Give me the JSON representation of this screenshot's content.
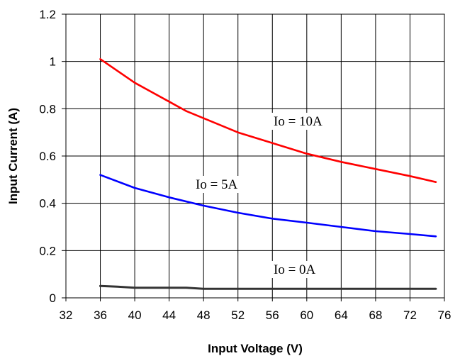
{
  "chart_data": {
    "type": "line",
    "title": "",
    "xlabel": "Input Voltage (V)",
    "ylabel": "Input Current (A)",
    "xlim": [
      32,
      76
    ],
    "ylim": [
      0,
      1.2
    ],
    "x_ticks": [
      "32",
      "36",
      "40",
      "44",
      "48",
      "52",
      "56",
      "60",
      "64",
      "68",
      "72",
      "76"
    ],
    "y_ticks": [
      "0",
      "0.2",
      "0.4",
      "0.6",
      "0.8",
      "1",
      "1.2"
    ],
    "grid": true,
    "legend": "none",
    "series": [
      {
        "name": "Io = 10A",
        "color": "#ff0000",
        "x": [
          36,
          40,
          44,
          46,
          48,
          52,
          56,
          60,
          64,
          68,
          72,
          75
        ],
        "y": [
          1.01,
          0.91,
          0.83,
          0.79,
          0.76,
          0.7,
          0.655,
          0.61,
          0.575,
          0.545,
          0.515,
          0.49
        ]
      },
      {
        "name": "Io = 5A",
        "color": "#0000ff",
        "x": [
          36,
          40,
          44,
          48,
          52,
          56,
          60,
          64,
          68,
          72,
          75
        ],
        "y": [
          0.52,
          0.465,
          0.425,
          0.39,
          0.36,
          0.335,
          0.318,
          0.3,
          0.282,
          0.27,
          0.26
        ]
      },
      {
        "name": "Io = 0A",
        "color": "#333333",
        "x": [
          36,
          38,
          40,
          44,
          46,
          48,
          52,
          56,
          60,
          64,
          68,
          72,
          75
        ],
        "y": [
          0.05,
          0.047,
          0.043,
          0.043,
          0.043,
          0.038,
          0.038,
          0.038,
          0.038,
          0.038,
          0.038,
          0.038,
          0.038
        ]
      }
    ],
    "annotations": [
      {
        "text": "Io = 10A",
        "series": 0
      },
      {
        "text": "Io = 5A",
        "series": 1
      },
      {
        "text": "Io = 0A",
        "series": 2
      }
    ]
  }
}
